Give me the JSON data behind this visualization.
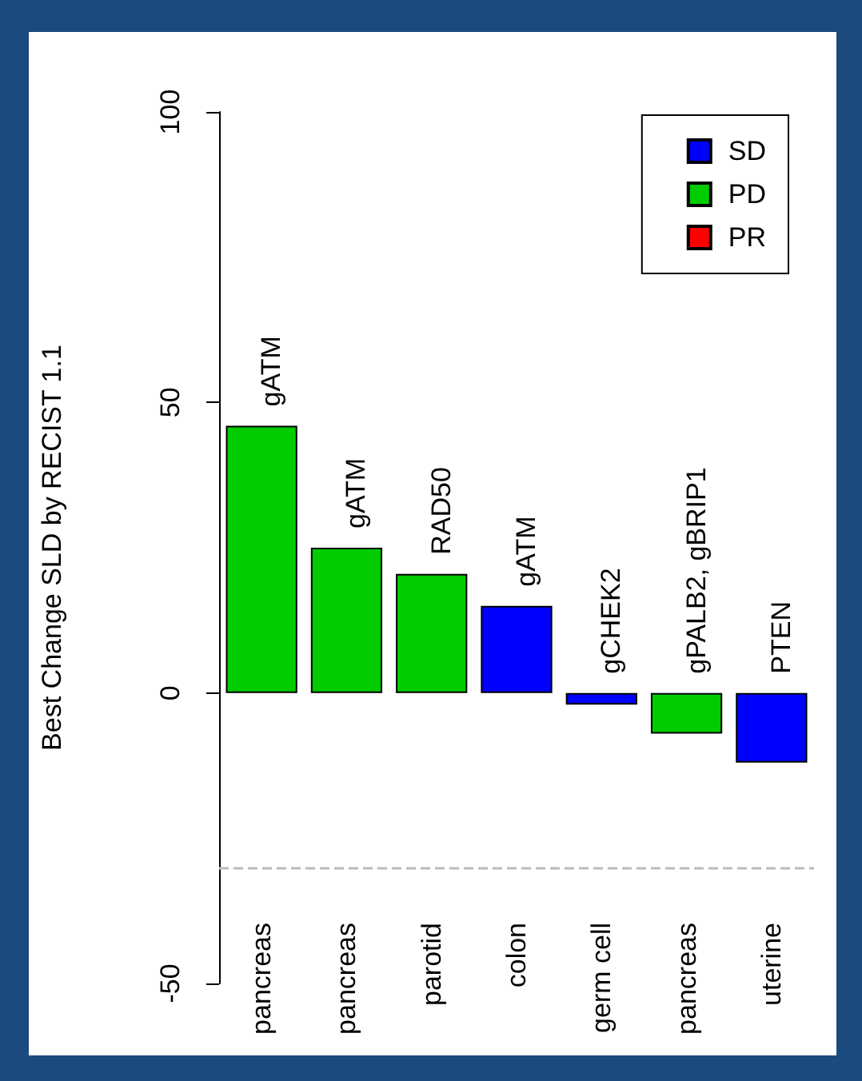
{
  "chart_data": {
    "type": "bar",
    "ylabel": "Best Change SLD by RECIST 1.1",
    "categories": [
      "pancreas",
      "pancreas",
      "parotid",
      "colon",
      "germ cell",
      "pancreas",
      "uterine"
    ],
    "series": [
      {
        "name": "SD",
        "color": "#0000ff",
        "values": [
          null,
          null,
          null,
          15,
          -2,
          null,
          -12
        ]
      },
      {
        "name": "PD",
        "color": "#00cc00",
        "values": [
          46,
          25,
          20.5,
          null,
          null,
          -7,
          null
        ]
      },
      {
        "name": "PR",
        "color": "#ff0000",
        "values": [
          null,
          null,
          null,
          null,
          null,
          null,
          null
        ]
      }
    ],
    "stacked": true,
    "annotations": [
      "gATM",
      "gATM",
      "RAD50",
      "gATM",
      "gCHEK2",
      "gPALB2, gBRIP1",
      "PTEN"
    ],
    "ref_lines": [
      {
        "axis": "y",
        "value": -30,
        "color": "#bbbbbb",
        "line_style": "dashed"
      }
    ],
    "ylim": [
      -50,
      100
    ],
    "yticks": [
      -50,
      0,
      50,
      100
    ],
    "grid": false,
    "legend": "top right"
  }
}
